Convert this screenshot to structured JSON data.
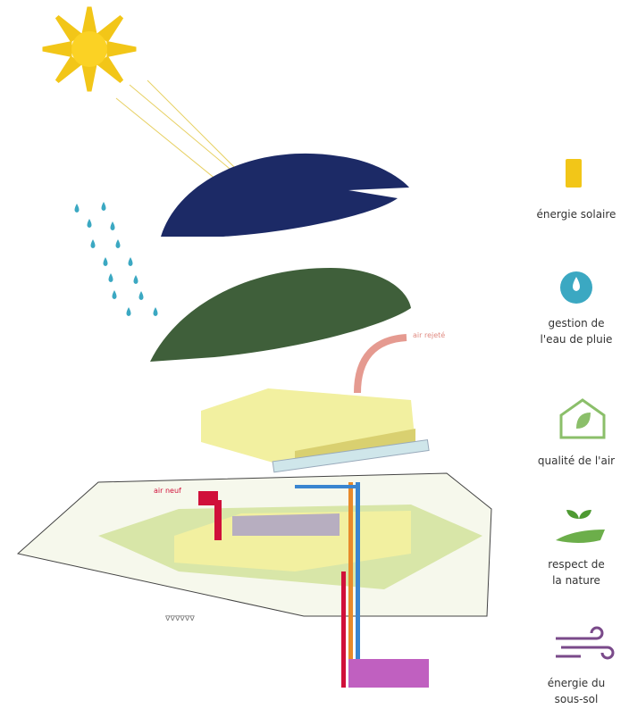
{
  "diagram": {
    "labels": {
      "air_out": "air rejeté",
      "air_in": "air neuf"
    }
  },
  "legend": [
    {
      "lines": [
        "énergie solaire"
      ]
    },
    {
      "lines": [
        "gestion de",
        "l'eau de pluie"
      ]
    },
    {
      "lines": [
        "qualité de l'air"
      ]
    },
    {
      "lines": [
        "respect de",
        "la nature"
      ]
    },
    {
      "lines": [
        "énergie du",
        "sous-sol"
      ]
    }
  ]
}
